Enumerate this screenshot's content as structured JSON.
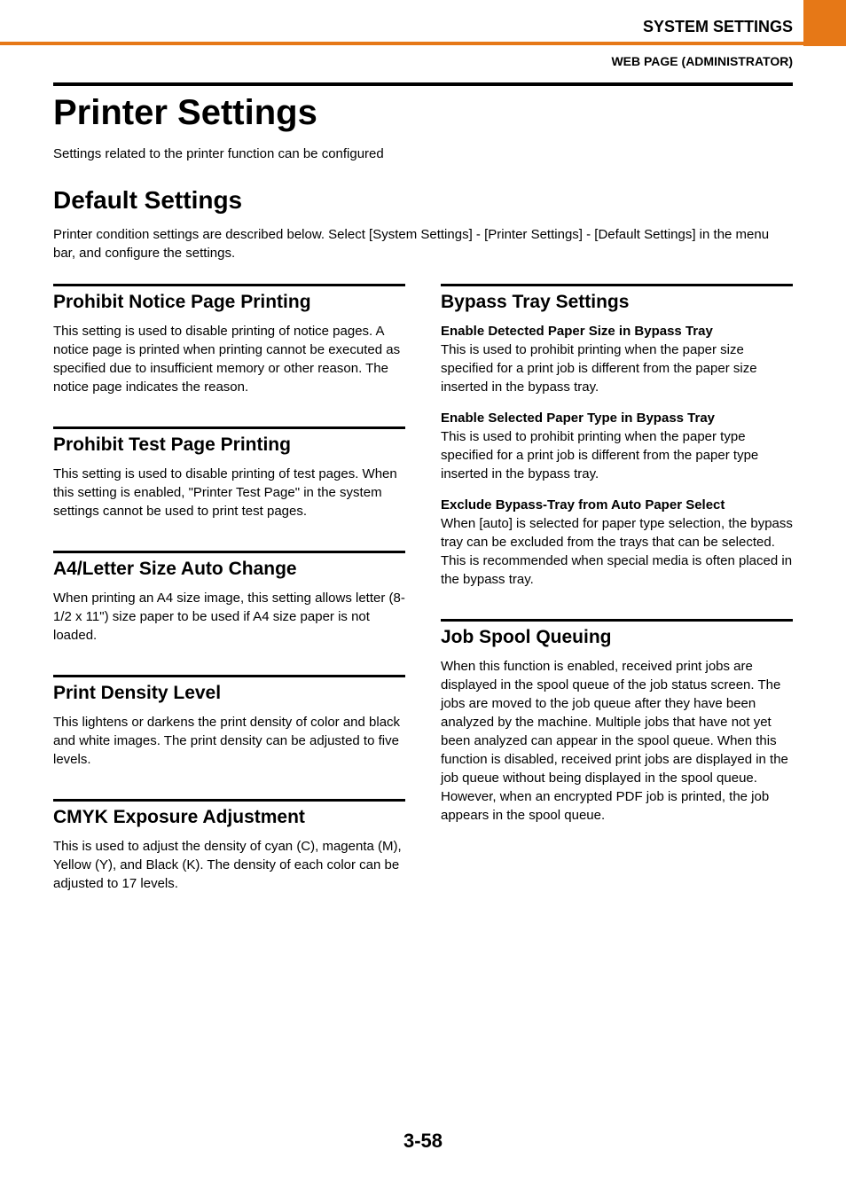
{
  "header": {
    "system_settings": "SYSTEM SETTINGS",
    "subheader": "WEB PAGE (ADMINISTRATOR)"
  },
  "title": "Printer Settings",
  "intro": "Settings related to the printer function can be configured",
  "section_title": "Default Settings",
  "section_intro": "Printer condition settings are described below. Select [System Settings] - [Printer Settings] - [Default Settings] in the menu bar, and configure the settings.",
  "left": {
    "s1": {
      "title": "Prohibit Notice Page Printing",
      "body": "This setting is used to disable printing of notice pages. A notice page is printed when printing cannot be executed as specified due to insufficient memory or other reason. The notice page indicates the reason."
    },
    "s2": {
      "title": "Prohibit Test Page Printing",
      "body": "This setting is used to disable printing of test pages. When this setting is enabled, \"Printer Test Page\" in the system settings cannot be used to print test pages."
    },
    "s3": {
      "title": "A4/Letter Size Auto Change",
      "body": "When printing an A4 size image, this setting allows letter (8-1/2 x 11\") size paper to be used if A4 size paper is not loaded."
    },
    "s4": {
      "title": "Print Density Level",
      "body": "This lightens or darkens the print density of color and black and white images. The print density can be adjusted to five levels."
    },
    "s5": {
      "title": "CMYK Exposure Adjustment",
      "body": "This is used to adjust the density of cyan (C), magenta (M), Yellow (Y), and Black (K). The density of each color can be adjusted to 17 levels."
    }
  },
  "right": {
    "s1": {
      "title": "Bypass Tray Settings",
      "b1": {
        "head": "Enable Detected Paper Size in Bypass Tray",
        "body": "This is used to prohibit printing when the paper size specified for a print job is different from the paper size inserted in the bypass tray."
      },
      "b2": {
        "head": "Enable Selected Paper Type in Bypass Tray",
        "body": "This is used to prohibit printing when the paper type specified for a print job is different from the paper type inserted in the bypass tray."
      },
      "b3": {
        "head": "Exclude Bypass-Tray from Auto Paper Select",
        "body": "When [auto] is selected for paper type selection, the bypass tray can be excluded from the trays that can be selected. This is recommended when special media is often placed in the bypass tray."
      }
    },
    "s2": {
      "title": "Job Spool Queuing",
      "body": "When this function is enabled, received print jobs are displayed in the spool queue of the job status screen. The jobs are moved to the job queue after they have been analyzed by the machine. Multiple jobs that have not yet been analyzed can appear in the spool queue. When this function is disabled, received print jobs are displayed in the job queue without being displayed in the spool queue. However, when an encrypted PDF job is printed, the job appears in the spool queue."
    }
  },
  "page_number": "3-58",
  "colors": {
    "accent": "#e67817",
    "text": "#000000",
    "background": "#ffffff"
  }
}
